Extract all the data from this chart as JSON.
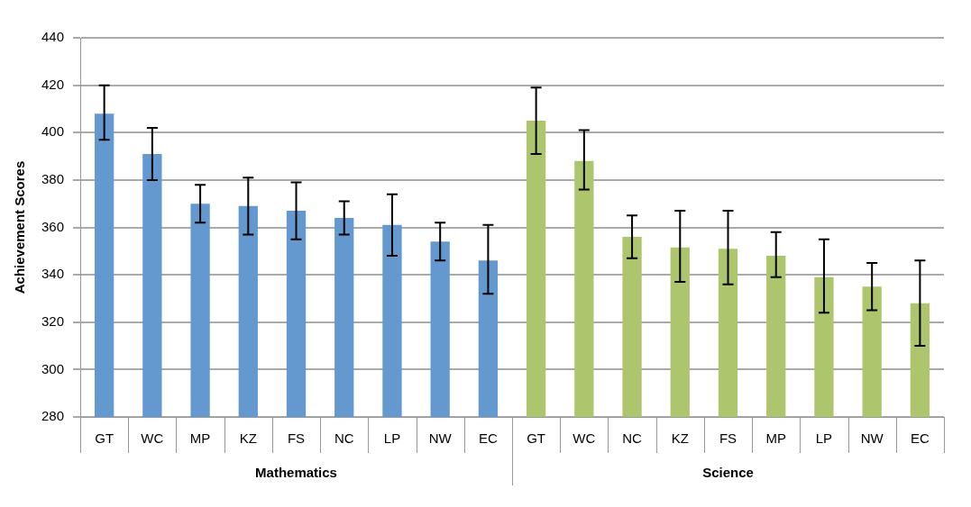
{
  "chart_data": {
    "type": "bar",
    "ylabel": "Achievement Scores",
    "categories": [
      "GT",
      "WC",
      "MP",
      "KZ",
      "FS",
      "NC",
      "LP",
      "NW",
      "EC",
      "GT",
      "WC",
      "NC",
      "KZ",
      "FS",
      "MP",
      "LP",
      "NW",
      "EC"
    ],
    "series": [
      {
        "name": "Mathematics",
        "color": "#6399cf",
        "values": [
          408,
          391,
          370,
          369,
          367,
          364,
          361,
          354,
          346,
          null,
          null,
          null,
          null,
          null,
          null,
          null,
          null,
          null
        ],
        "errors": [
          [
            397,
            420
          ],
          [
            380,
            402
          ],
          [
            362,
            378
          ],
          [
            357,
            381
          ],
          [
            355,
            379
          ],
          [
            357,
            371
          ],
          [
            348,
            374
          ],
          [
            346,
            362
          ],
          [
            332,
            361
          ],
          null,
          null,
          null,
          null,
          null,
          null,
          null,
          null,
          null
        ]
      },
      {
        "name": "Science",
        "color": "#adc56c",
        "values": [
          null,
          null,
          null,
          null,
          null,
          null,
          null,
          null,
          null,
          405,
          388,
          356,
          351.5,
          351,
          348,
          339,
          335,
          328
        ],
        "errors": [
          null,
          null,
          null,
          null,
          null,
          null,
          null,
          null,
          null,
          [
            391,
            419
          ],
          [
            376,
            401
          ],
          [
            347,
            365
          ],
          [
            337,
            367
          ],
          [
            336,
            367
          ],
          [
            339,
            358
          ],
          [
            324,
            355
          ],
          [
            325,
            345
          ],
          [
            310,
            346
          ]
        ]
      }
    ],
    "ylim": [
      280,
      440
    ],
    "yticks": [
      280,
      300,
      320,
      340,
      360,
      380,
      400,
      420,
      440
    ],
    "grid": "y",
    "legend": false
  }
}
